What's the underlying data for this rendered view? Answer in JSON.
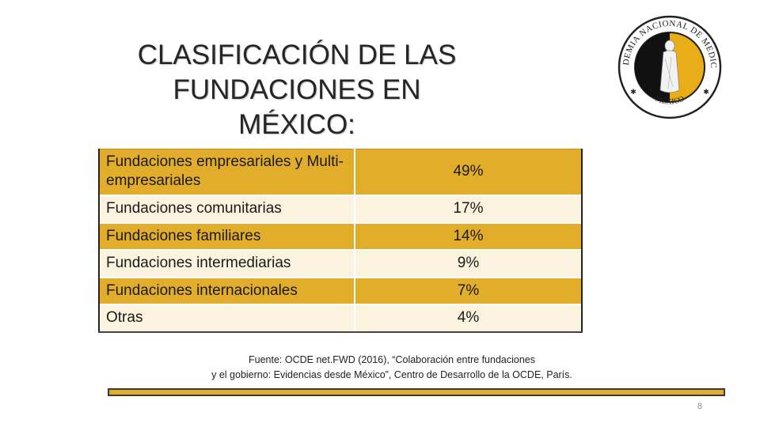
{
  "title": "CLASIFICACIÓN DE LAS FUNDACIONES EN MÉXICO:",
  "logo": {
    "ring_text": "ACADEMIA NACIONAL DE MEDICINA",
    "bottom_text": "MÉXICO",
    "colors": {
      "gold": "#e8ad17",
      "black": "#111111",
      "ring": "#222222"
    }
  },
  "table": {
    "rows": [
      {
        "label": "Fundaciones empresariales y Multi-empresariales",
        "value": "49%"
      },
      {
        "label": "Fundaciones comunitarias",
        "value": "17%"
      },
      {
        "label": "Fundaciones familiares",
        "value": "14%"
      },
      {
        "label": "Fundaciones intermediarias",
        "value": "9%"
      },
      {
        "label": "Fundaciones internacionales",
        "value": "7%"
      },
      {
        "label": "Otras",
        "value": "4%"
      }
    ],
    "colors": {
      "gold": "#e1ad2a",
      "cream": "#fbf3de"
    }
  },
  "source": {
    "line1": "Fuente: OCDE net.FWD (2016), “Colaboración entre fundaciones",
    "line2": "y el gobierno: Evidencias desde México”, Centro de Desarrollo de la OCDE, París."
  },
  "page_number": "8"
}
